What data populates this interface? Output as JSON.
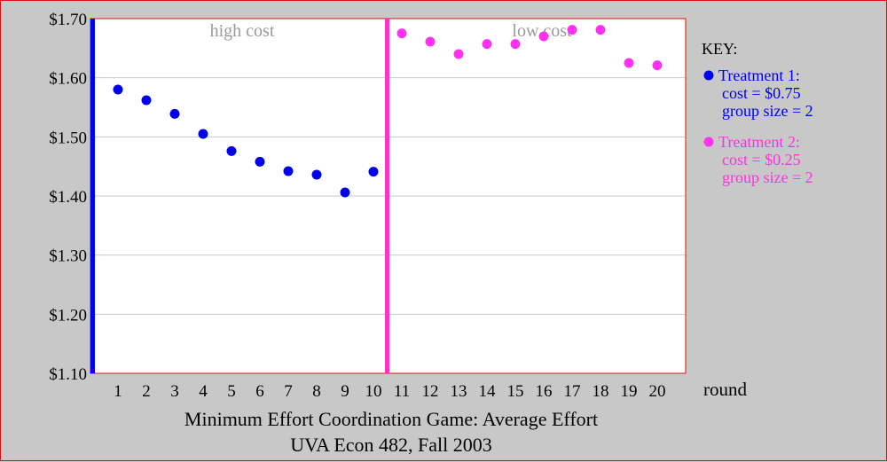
{
  "chart_data": {
    "type": "scatter",
    "title": "Minimum Effort Coordination Game: Average Effort",
    "subtitle": "UVA Econ 482, Fall 2003",
    "xlabel": "round",
    "ylabel": "",
    "ylim": [
      1.1,
      1.7
    ],
    "y_ticks": [
      "$1.10",
      "$1.20",
      "$1.30",
      "$1.40",
      "$1.50",
      "$1.60",
      "$1.70"
    ],
    "x_ticks": [
      "1",
      "2",
      "3",
      "4",
      "5",
      "6",
      "7",
      "8",
      "9",
      "10",
      "11",
      "12",
      "13",
      "14",
      "15",
      "16",
      "17",
      "18",
      "19",
      "20"
    ],
    "grid": "horizontal",
    "regions": [
      {
        "label": "high cost",
        "rounds": [
          1,
          10
        ]
      },
      {
        "label": "low cost",
        "rounds": [
          11,
          20
        ]
      }
    ],
    "legend": {
      "title": "KEY:",
      "placement": "right",
      "entries": [
        {
          "name": "Treatment 1:",
          "lines": [
            "cost = $0.75",
            "group size = 2"
          ],
          "color": "#0000ee"
        },
        {
          "name": "Treatment 2:",
          "lines": [
            "cost = $0.25",
            "group size = 2"
          ],
          "color": "#ff33ee"
        }
      ]
    },
    "series": [
      {
        "name": "Treatment 1",
        "color": "#0000ee",
        "x": [
          1,
          2,
          3,
          4,
          5,
          6,
          7,
          8,
          9,
          10
        ],
        "values": [
          1.58,
          1.562,
          1.539,
          1.505,
          1.476,
          1.458,
          1.442,
          1.436,
          1.406,
          1.441
        ]
      },
      {
        "name": "Treatment 2",
        "color": "#ff33ee",
        "x": [
          11,
          12,
          13,
          14,
          15,
          16,
          17,
          18,
          19,
          20
        ],
        "values": [
          1.675,
          1.661,
          1.64,
          1.657,
          1.657,
          1.67,
          1.681,
          1.681,
          1.625,
          1.621
        ]
      }
    ],
    "colors": {
      "axis_left": "#0000ee",
      "divider": "#ff33cc",
      "plot_border": "#e01010",
      "background": "#c8c8c8",
      "gridline": "#c8c8c8"
    }
  }
}
